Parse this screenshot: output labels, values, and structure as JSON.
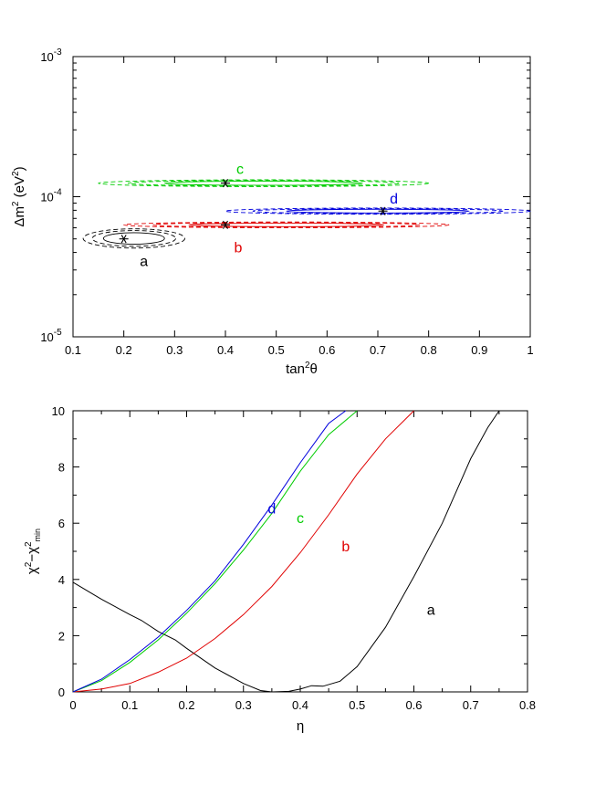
{
  "chart_data": [
    {
      "type": "contour",
      "xlabel": "tan²θ",
      "ylabel": "Δm² (eV²)",
      "xlim": [
        0.1,
        1.0
      ],
      "ylim": [
        1e-05,
        0.001
      ],
      "yscale": "log",
      "x_ticks": [
        "0.1",
        "0.2",
        "0.3",
        "0.4",
        "0.5",
        "0.6",
        "0.7",
        "0.8",
        "0.9",
        "1"
      ],
      "y_ticks": [
        {
          "value": 1e-05,
          "base": "10",
          "exp": "-5"
        },
        {
          "value": 0.0001,
          "base": "10",
          "exp": "-4"
        },
        {
          "value": 0.001,
          "base": "10",
          "exp": "-3"
        }
      ],
      "best_fit_points": [
        {
          "label": "a",
          "x": 0.2,
          "y": 5e-05,
          "color": "#000000"
        },
        {
          "label": "b",
          "x": 0.4,
          "y": 6.3e-05,
          "color": "#e00000"
        },
        {
          "label": "c",
          "x": 0.4,
          "y": 0.000125,
          "color": "#00cc00"
        },
        {
          "label": "d",
          "x": 0.71,
          "y": 7.9e-05,
          "color": "#0000dd"
        }
      ],
      "contour_regions": [
        {
          "label": "a",
          "color": "#000000",
          "x_range": [
            0.12,
            0.32
          ],
          "y_range": [
            4.3e-05,
            5.9e-05
          ]
        },
        {
          "label": "b",
          "color": "#e00000",
          "x_range": [
            0.2,
            0.84
          ],
          "y_range": [
            6e-05,
            6.6e-05
          ]
        },
        {
          "label": "c",
          "color": "#00cc00",
          "x_range": [
            0.15,
            0.8
          ],
          "y_range": [
            0.000118,
            0.000132
          ]
        },
        {
          "label": "d",
          "color": "#0000dd",
          "x_range": [
            0.4,
            1.0
          ],
          "y_range": [
            7.5e-05,
            8.3e-05
          ]
        }
      ]
    },
    {
      "type": "line",
      "xlabel": "η",
      "ylabel": "χ² − χ²min",
      "xlim": [
        0,
        0.8
      ],
      "ylim": [
        0,
        10
      ],
      "x_ticks": [
        "0",
        "0.1",
        "0.2",
        "0.3",
        "0.4",
        "0.5",
        "0.6",
        "0.7",
        "0.8"
      ],
      "y_ticks": [
        "0",
        "2",
        "4",
        "6",
        "8",
        "10"
      ],
      "series": [
        {
          "name": "a",
          "color": "#000000",
          "x": [
            0,
            0.05,
            0.1,
            0.12,
            0.15,
            0.18,
            0.2,
            0.25,
            0.3,
            0.33,
            0.35,
            0.38,
            0.4,
            0.42,
            0.44,
            0.47,
            0.5,
            0.55,
            0.6,
            0.65,
            0.7,
            0.73,
            0.75
          ],
          "y": [
            3.9,
            3.3,
            2.75,
            2.55,
            2.15,
            1.85,
            1.55,
            0.85,
            0.3,
            0.05,
            0.0,
            0.02,
            0.1,
            0.22,
            0.2,
            0.38,
            0.9,
            2.3,
            4.1,
            6.0,
            8.3,
            9.4,
            10.0
          ]
        },
        {
          "name": "b",
          "color": "#e00000",
          "x": [
            0,
            0.05,
            0.1,
            0.15,
            0.2,
            0.25,
            0.3,
            0.35,
            0.4,
            0.45,
            0.5,
            0.55,
            0.6
          ],
          "y": [
            0,
            0.1,
            0.3,
            0.7,
            1.2,
            1.9,
            2.75,
            3.75,
            4.95,
            6.3,
            7.75,
            9.0,
            10.0
          ]
        },
        {
          "name": "c",
          "color": "#00cc00",
          "x": [
            0,
            0.05,
            0.1,
            0.15,
            0.2,
            0.25,
            0.3,
            0.35,
            0.4,
            0.45,
            0.5
          ],
          "y": [
            0,
            0.4,
            1.05,
            1.85,
            2.8,
            3.85,
            5.05,
            6.35,
            7.85,
            9.15,
            10.0
          ]
        },
        {
          "name": "d",
          "color": "#0000dd",
          "x": [
            0,
            0.05,
            0.1,
            0.15,
            0.2,
            0.25,
            0.3,
            0.35,
            0.4,
            0.45,
            0.48
          ],
          "y": [
            0,
            0.45,
            1.15,
            1.95,
            2.9,
            3.95,
            5.25,
            6.65,
            8.15,
            9.55,
            10.0
          ]
        }
      ],
      "curve_labels": [
        {
          "label": "a",
          "x": 0.63,
          "y": 2.75,
          "color": "#000000"
        },
        {
          "label": "b",
          "x": 0.48,
          "y": 5.0,
          "color": "#e00000"
        },
        {
          "label": "c",
          "x": 0.4,
          "y": 6.0,
          "color": "#00cc00"
        },
        {
          "label": "d",
          "x": 0.35,
          "y": 6.35,
          "color": "#0000dd"
        }
      ]
    }
  ]
}
